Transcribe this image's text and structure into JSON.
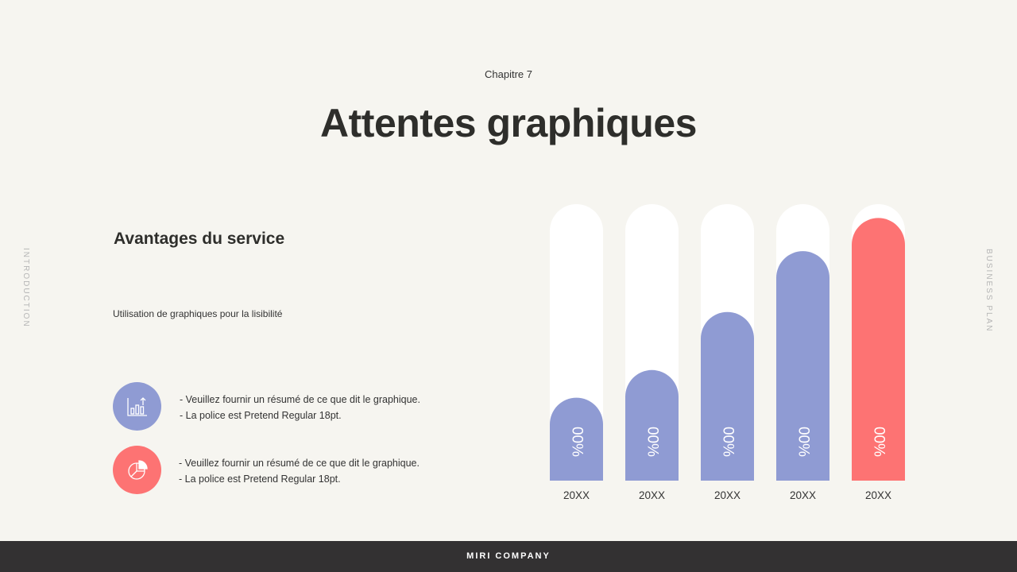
{
  "header": {
    "chapter": "Chapitre 7",
    "title": "Attentes graphiques"
  },
  "side_labels": {
    "left": "INTRODUCTION",
    "right": "BUSINESS PLAN"
  },
  "left_panel": {
    "section_title": "Avantages du service",
    "subtitle": "Utilisation de graphiques pour la lisibilité",
    "bullets": [
      {
        "icon": "bar-chart-icon",
        "color": "#8f9bd3",
        "lines": [
          "- Veuillez fournir un résumé de ce que dit le graphique.",
          "- La police est Pretend Regular 18pt."
        ]
      },
      {
        "icon": "pie-chart-icon",
        "color": "#fd7373",
        "lines": [
          "- Veuillez fournir un résumé de ce que dit le graphique.",
          "- La police est Pretend Regular 18pt."
        ]
      }
    ]
  },
  "chart_data": {
    "type": "bar",
    "categories": [
      "20XX",
      "20XX",
      "20XX",
      "20XX",
      "20XX"
    ],
    "values": [
      30,
      40,
      61,
      83,
      95
    ],
    "data_labels": [
      "00%",
      "00%",
      "00%",
      "00%",
      "00%"
    ],
    "ylim": [
      0,
      100
    ],
    "grid": false,
    "colors": [
      "#8f9bd3",
      "#8f9bd3",
      "#8f9bd3",
      "#8f9bd3",
      "#fd7373"
    ],
    "track_color": "#ffffff"
  },
  "footer": {
    "company": "MIRI COMPANY"
  }
}
